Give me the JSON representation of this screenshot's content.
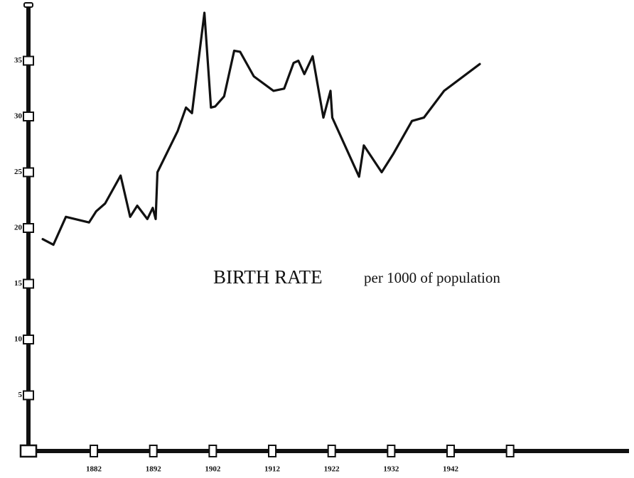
{
  "chart_data": {
    "type": "line",
    "title": "BIRTH RATE",
    "subtitle": "per 1000 of population",
    "x": [
      1873.4,
      1875.2,
      1877.3,
      1881.2,
      1882.4,
      1883.9,
      1886.5,
      1888.1,
      1889.3,
      1891.0,
      1891.9,
      1892.4,
      1892.7,
      1896.1,
      1897.5,
      1898.5,
      1900.6,
      1901.7,
      1902.4,
      1903.9,
      1905.6,
      1906.6,
      1908.9,
      1912.2,
      1914.0,
      1915.6,
      1916.4,
      1917.4,
      1918.8,
      1920.6,
      1921.8,
      1922.1,
      1926.6,
      1927.4,
      1930.4,
      1932.3,
      1935.5,
      1937.5,
      1940.9,
      1946.9
    ],
    "series": [
      {
        "name": "Birth rate",
        "color": "#111111",
        "values": [
          19.0,
          18.5,
          21.0,
          20.5,
          21.5,
          22.2,
          24.7,
          21.0,
          22.0,
          20.8,
          21.8,
          20.8,
          25.0,
          28.7,
          30.8,
          30.3,
          39.3,
          30.8,
          30.9,
          31.8,
          35.9,
          35.8,
          33.6,
          32.3,
          32.5,
          34.8,
          35.0,
          33.8,
          35.4,
          29.9,
          32.3,
          29.9,
          24.6,
          27.4,
          25.0,
          26.6,
          29.6,
          29.9,
          32.3,
          34.7
        ]
      }
    ],
    "xlim": [
      1871,
      1972
    ],
    "xticks": [
      1882,
      1892,
      1902,
      1912,
      1922,
      1932,
      1942,
      {
        "value": 1952,
        "label": null
      }
    ],
    "ylim": [
      0,
      40
    ],
    "yticks": [
      5,
      10,
      15,
      20,
      25,
      30,
      35
    ],
    "grid": false
  }
}
